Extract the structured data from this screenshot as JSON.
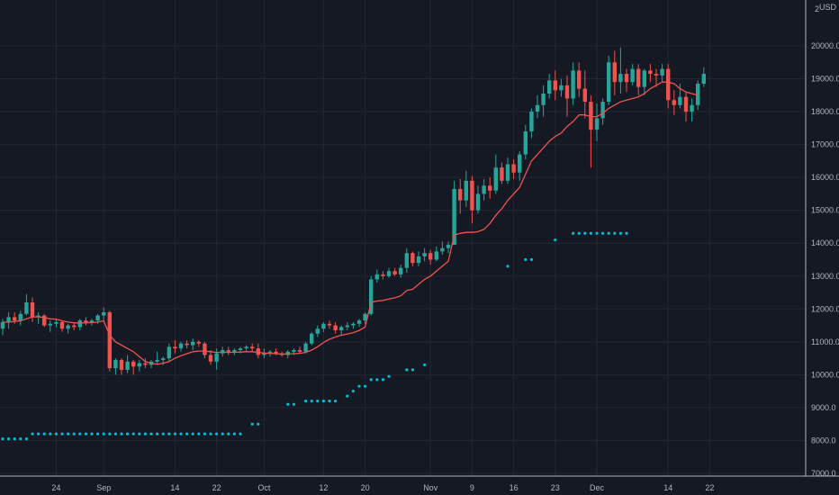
{
  "chart_data": {
    "type": "candlestick",
    "currency": "USD",
    "ylim": [
      7000,
      21000
    ],
    "y_ticks": [
      7000,
      8000,
      9000,
      10000,
      11000,
      12000,
      13000,
      14000,
      15000,
      16000,
      17000,
      18000,
      19000,
      20000
    ],
    "y_top_label": "2",
    "y_tick_labels": [
      "7000.0",
      "8000.0",
      "9000.0",
      "10000.0",
      "11000.0",
      "12000.0",
      "13000.0",
      "14000.0",
      "15000.0",
      "16000.0",
      "17000.0",
      "18000.0",
      "19000.0",
      "20000.0"
    ],
    "x_ticks": [
      {
        "label": "24",
        "i": 9
      },
      {
        "label": "Sep",
        "i": 17
      },
      {
        "label": "14",
        "i": 29
      },
      {
        "label": "22",
        "i": 36
      },
      {
        "label": "Oct",
        "i": 44
      },
      {
        "label": "12",
        "i": 54
      },
      {
        "label": "20",
        "i": 61
      },
      {
        "label": "Nov",
        "i": 72
      },
      {
        "label": "9",
        "i": 79
      },
      {
        "label": "16",
        "i": 86
      },
      {
        "label": "23",
        "i": 93
      },
      {
        "label": "Dec",
        "i": 100
      },
      {
        "label": "14",
        "i": 112
      },
      {
        "label": "22",
        "i": 119
      }
    ],
    "n_slots": 126,
    "candles": [
      [
        11400,
        11700,
        11200,
        11600
      ],
      [
        11600,
        11900,
        11400,
        11750
      ],
      [
        11750,
        11900,
        11550,
        11650
      ],
      [
        11650,
        11950,
        11500,
        11850
      ],
      [
        11850,
        12450,
        11800,
        12200
      ],
      [
        12200,
        12350,
        11600,
        11750
      ],
      [
        11750,
        11900,
        11550,
        11800
      ],
      [
        11800,
        11850,
        11450,
        11500
      ],
      [
        11500,
        11650,
        11300,
        11550
      ],
      [
        11550,
        11700,
        11450,
        11600
      ],
      [
        11600,
        11650,
        11300,
        11400
      ],
      [
        11400,
        11550,
        11250,
        11500
      ],
      [
        11500,
        11600,
        11350,
        11450
      ],
      [
        11450,
        11700,
        11350,
        11650
      ],
      [
        11650,
        11750,
        11500,
        11600
      ],
      [
        11600,
        11700,
        11500,
        11650
      ],
      [
        11650,
        11850,
        11550,
        11800
      ],
      [
        11800,
        12050,
        11650,
        11900
      ],
      [
        11900,
        11950,
        10100,
        10200
      ],
      [
        10200,
        10500,
        10000,
        10450
      ],
      [
        10450,
        10500,
        10000,
        10150
      ],
      [
        10150,
        10600,
        10050,
        10400
      ],
      [
        10400,
        10450,
        10000,
        10250
      ],
      [
        10250,
        10450,
        10100,
        10350
      ],
      [
        10350,
        10500,
        10200,
        10300
      ],
      [
        10300,
        10450,
        10200,
        10400
      ],
      [
        10400,
        10700,
        10300,
        10450
      ],
      [
        10450,
        10550,
        10300,
        10500
      ],
      [
        10500,
        10950,
        10400,
        10850
      ],
      [
        10850,
        11050,
        10650,
        10800
      ],
      [
        10800,
        11000,
        10700,
        10950
      ],
      [
        10950,
        11050,
        10800,
        10900
      ],
      [
        10900,
        11100,
        10750,
        11000
      ],
      [
        11000,
        11050,
        10850,
        10950
      ],
      [
        10950,
        11000,
        10500,
        10600
      ],
      [
        10600,
        10750,
        10300,
        10400
      ],
      [
        10400,
        10800,
        10150,
        10650
      ],
      [
        10650,
        10850,
        10550,
        10750
      ],
      [
        10750,
        10850,
        10600,
        10700
      ],
      [
        10700,
        10800,
        10600,
        10750
      ],
      [
        10750,
        10850,
        10650,
        10800
      ],
      [
        10800,
        10900,
        10700,
        10850
      ],
      [
        10850,
        10950,
        10700,
        10800
      ],
      [
        10800,
        10950,
        10500,
        10600
      ],
      [
        10600,
        10800,
        10500,
        10650
      ],
      [
        10650,
        10750,
        10550,
        10700
      ],
      [
        10700,
        10800,
        10600,
        10650
      ],
      [
        10650,
        10700,
        10550,
        10600
      ],
      [
        10600,
        10750,
        10500,
        10700
      ],
      [
        10700,
        10800,
        10600,
        10750
      ],
      [
        10750,
        10850,
        10650,
        10700
      ],
      [
        10700,
        11000,
        10650,
        10950
      ],
      [
        10950,
        11300,
        10900,
        11250
      ],
      [
        11250,
        11500,
        11150,
        11400
      ],
      [
        11400,
        11600,
        11300,
        11550
      ],
      [
        11550,
        11650,
        11400,
        11500
      ],
      [
        11500,
        11600,
        11250,
        11350
      ],
      [
        11350,
        11500,
        11200,
        11450
      ],
      [
        11450,
        11600,
        11350,
        11500
      ],
      [
        11500,
        11600,
        11400,
        11550
      ],
      [
        11550,
        11700,
        11450,
        11650
      ],
      [
        11650,
        11900,
        11550,
        11850
      ],
      [
        11850,
        13000,
        11800,
        12900
      ],
      [
        12900,
        13200,
        12800,
        13050
      ],
      [
        13050,
        13150,
        12900,
        13000
      ],
      [
        13000,
        13250,
        12950,
        13150
      ],
      [
        13150,
        13250,
        13000,
        13050
      ],
      [
        13050,
        13350,
        12950,
        13250
      ],
      [
        13250,
        13850,
        13100,
        13700
      ],
      [
        13700,
        13750,
        13300,
        13400
      ],
      [
        13400,
        13750,
        13300,
        13600
      ],
      [
        13600,
        13850,
        13450,
        13700
      ],
      [
        13700,
        13800,
        13350,
        13500
      ],
      [
        13500,
        13900,
        13450,
        13750
      ],
      [
        13750,
        14050,
        13650,
        13850
      ],
      [
        13850,
        14050,
        13700,
        13950
      ],
      [
        13950,
        15900,
        13950,
        15650
      ],
      [
        15650,
        15950,
        14900,
        15300
      ],
      [
        15300,
        16200,
        15100,
        15900
      ],
      [
        15900,
        16050,
        14600,
        15000
      ],
      [
        15000,
        15750,
        14900,
        15500
      ],
      [
        15500,
        15950,
        15300,
        15750
      ],
      [
        15750,
        16000,
        15350,
        15600
      ],
      [
        15600,
        16700,
        15500,
        16300
      ],
      [
        16300,
        16450,
        15800,
        15900
      ],
      [
        15900,
        16600,
        15800,
        16400
      ],
      [
        16400,
        16550,
        15950,
        16150
      ],
      [
        16150,
        16800,
        15900,
        16700
      ],
      [
        16700,
        17600,
        16550,
        17400
      ],
      [
        17400,
        18100,
        17200,
        18000
      ],
      [
        18000,
        18500,
        17800,
        18200
      ],
      [
        18200,
        18800,
        17850,
        18550
      ],
      [
        18550,
        19150,
        18400,
        18950
      ],
      [
        18950,
        19250,
        18350,
        18650
      ],
      [
        18650,
        19000,
        18450,
        18800
      ],
      [
        18800,
        19100,
        17850,
        18400
      ],
      [
        18400,
        19500,
        18200,
        19250
      ],
      [
        19250,
        19500,
        18450,
        18700
      ],
      [
        18700,
        19250,
        17800,
        18300
      ],
      [
        18300,
        18500,
        16300,
        17450
      ],
      [
        17450,
        18250,
        17100,
        17800
      ],
      [
        17800,
        18400,
        17600,
        18300
      ],
      [
        18300,
        19700,
        18200,
        19500
      ],
      [
        19500,
        19850,
        18500,
        18900
      ],
      [
        18900,
        19950,
        18550,
        19150
      ],
      [
        19150,
        19300,
        18600,
        18900
      ],
      [
        18900,
        19450,
        18800,
        19300
      ],
      [
        19300,
        19450,
        18500,
        18750
      ],
      [
        18750,
        19300,
        18500,
        19250
      ],
      [
        19250,
        19450,
        18900,
        19150
      ],
      [
        19150,
        19300,
        18750,
        19100
      ],
      [
        19100,
        19450,
        18900,
        19300
      ],
      [
        19300,
        19450,
        18100,
        18350
      ],
      [
        18350,
        18650,
        17900,
        18200
      ],
      [
        18200,
        18850,
        18100,
        18450
      ],
      [
        18450,
        18600,
        17700,
        18000
      ],
      [
        18000,
        18400,
        17700,
        18200
      ],
      [
        18200,
        18950,
        18050,
        18850
      ],
      [
        18850,
        19350,
        18750,
        19150
      ]
    ],
    "ma": [
      11600,
      11600,
      11620,
      11640,
      11700,
      11760,
      11760,
      11740,
      11700,
      11690,
      11640,
      11600,
      11580,
      11570,
      11580,
      11590,
      11600,
      11640,
      11200,
      11000,
      10900,
      10800,
      10700,
      10550,
      10400,
      10350,
      10320,
      10350,
      10400,
      10500,
      10580,
      10640,
      10700,
      10720,
      10720,
      10700,
      10680,
      10680,
      10680,
      10680,
      10690,
      10700,
      10700,
      10680,
      10660,
      10650,
      10640,
      10630,
      10630,
      10640,
      10650,
      10680,
      10750,
      10850,
      10980,
      11080,
      11150,
      11200,
      11240,
      11280,
      11350,
      11450,
      12200,
      12240,
      12260,
      12300,
      12340,
      12400,
      12560,
      12600,
      12750,
      12900,
      13000,
      13150,
      13300,
      13450,
      14250,
      14300,
      14330,
      14330,
      14350,
      14420,
      14600,
      14850,
      15050,
      15300,
      15500,
      15700,
      16100,
      16500,
      16700,
      16900,
      17100,
      17250,
      17350,
      17550,
      17700,
      17900,
      17900,
      17850,
      17850,
      17950,
      18100,
      18200,
      18300,
      18350,
      18400,
      18450,
      18550,
      18700,
      18800,
      18900,
      18900,
      18850,
      18700,
      18600,
      18550,
      18500
    ],
    "psar": [
      [
        0,
        8050
      ],
      [
        1,
        8050
      ],
      [
        2,
        8050
      ],
      [
        3,
        8050
      ],
      [
        4,
        8050
      ],
      [
        5,
        8200
      ],
      [
        6,
        8200
      ],
      [
        7,
        8200
      ],
      [
        8,
        8200
      ],
      [
        9,
        8200
      ],
      [
        10,
        8200
      ],
      [
        11,
        8200
      ],
      [
        12,
        8200
      ],
      [
        13,
        8200
      ],
      [
        14,
        8200
      ],
      [
        15,
        8200
      ],
      [
        16,
        8200
      ],
      [
        17,
        8200
      ],
      [
        18,
        8200
      ],
      [
        19,
        8200
      ],
      [
        20,
        8200
      ],
      [
        21,
        8200
      ],
      [
        22,
        8200
      ],
      [
        23,
        8200
      ],
      [
        24,
        8200
      ],
      [
        25,
        8200
      ],
      [
        26,
        8200
      ],
      [
        27,
        8200
      ],
      [
        28,
        8200
      ],
      [
        29,
        8200
      ],
      [
        30,
        8200
      ],
      [
        31,
        8200
      ],
      [
        32,
        8200
      ],
      [
        33,
        8200
      ],
      [
        34,
        8200
      ],
      [
        35,
        8200
      ],
      [
        36,
        8200
      ],
      [
        37,
        8200
      ],
      [
        38,
        8200
      ],
      [
        39,
        8200
      ],
      [
        40,
        8200
      ],
      [
        42,
        8500
      ],
      [
        43,
        8500
      ],
      [
        48,
        9100
      ],
      [
        49,
        9100
      ],
      [
        51,
        9200
      ],
      [
        52,
        9200
      ],
      [
        53,
        9200
      ],
      [
        54,
        9200
      ],
      [
        55,
        9200
      ],
      [
        56,
        9200
      ],
      [
        58,
        9350
      ],
      [
        59,
        9500
      ],
      [
        60,
        9650
      ],
      [
        61,
        9650
      ],
      [
        62,
        9850
      ],
      [
        63,
        9850
      ],
      [
        64,
        9850
      ],
      [
        65,
        9950
      ],
      [
        68,
        10150
      ],
      [
        69,
        10150
      ],
      [
        71,
        10300
      ],
      [
        85,
        13300
      ],
      [
        88,
        13500
      ],
      [
        89,
        13500
      ],
      [
        93,
        14100
      ],
      [
        96,
        14300
      ],
      [
        97,
        14300
      ],
      [
        98,
        14300
      ],
      [
        99,
        14300
      ],
      [
        100,
        14300
      ],
      [
        101,
        14300
      ],
      [
        102,
        14300
      ],
      [
        103,
        14300
      ],
      [
        104,
        14300
      ],
      [
        105,
        14300
      ]
    ],
    "colors": {
      "up": "#26a69a",
      "down": "#ef5350",
      "ma": "#ef5350",
      "psar": "#00bcd4",
      "grid": "#232633",
      "text": "#b2b5be",
      "bg": "#151924"
    }
  }
}
